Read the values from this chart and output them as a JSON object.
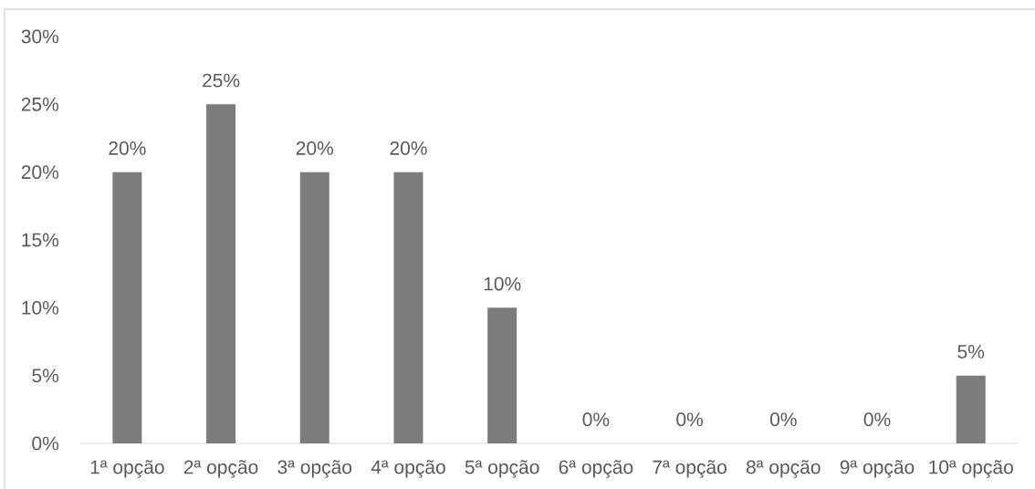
{
  "chart_data": {
    "type": "bar",
    "categories": [
      "1ª opção",
      "2ª opção",
      "3ª opção",
      "4ª opção",
      "5ª opção",
      "6ª opção",
      "7ª opção",
      "8ª opção",
      "9ª opção",
      "10ª opção"
    ],
    "values": [
      20,
      25,
      20,
      20,
      10,
      0,
      0,
      0,
      0,
      5
    ],
    "value_labels": [
      "20%",
      "25%",
      "20%",
      "20%",
      "10%",
      "0%",
      "0%",
      "0%",
      "0%",
      "5%"
    ],
    "color": "#7b7c7e",
    "ylim": [
      0,
      30
    ],
    "yticks": [
      {
        "value": 0,
        "label": "0%"
      },
      {
        "value": 5,
        "label": "5%"
      },
      {
        "value": 10,
        "label": "10%"
      },
      {
        "value": 15,
        "label": "15%"
      },
      {
        "value": 20,
        "label": "20%"
      },
      {
        "value": 25,
        "label": "25%"
      },
      {
        "value": 30,
        "label": "30%"
      }
    ]
  }
}
